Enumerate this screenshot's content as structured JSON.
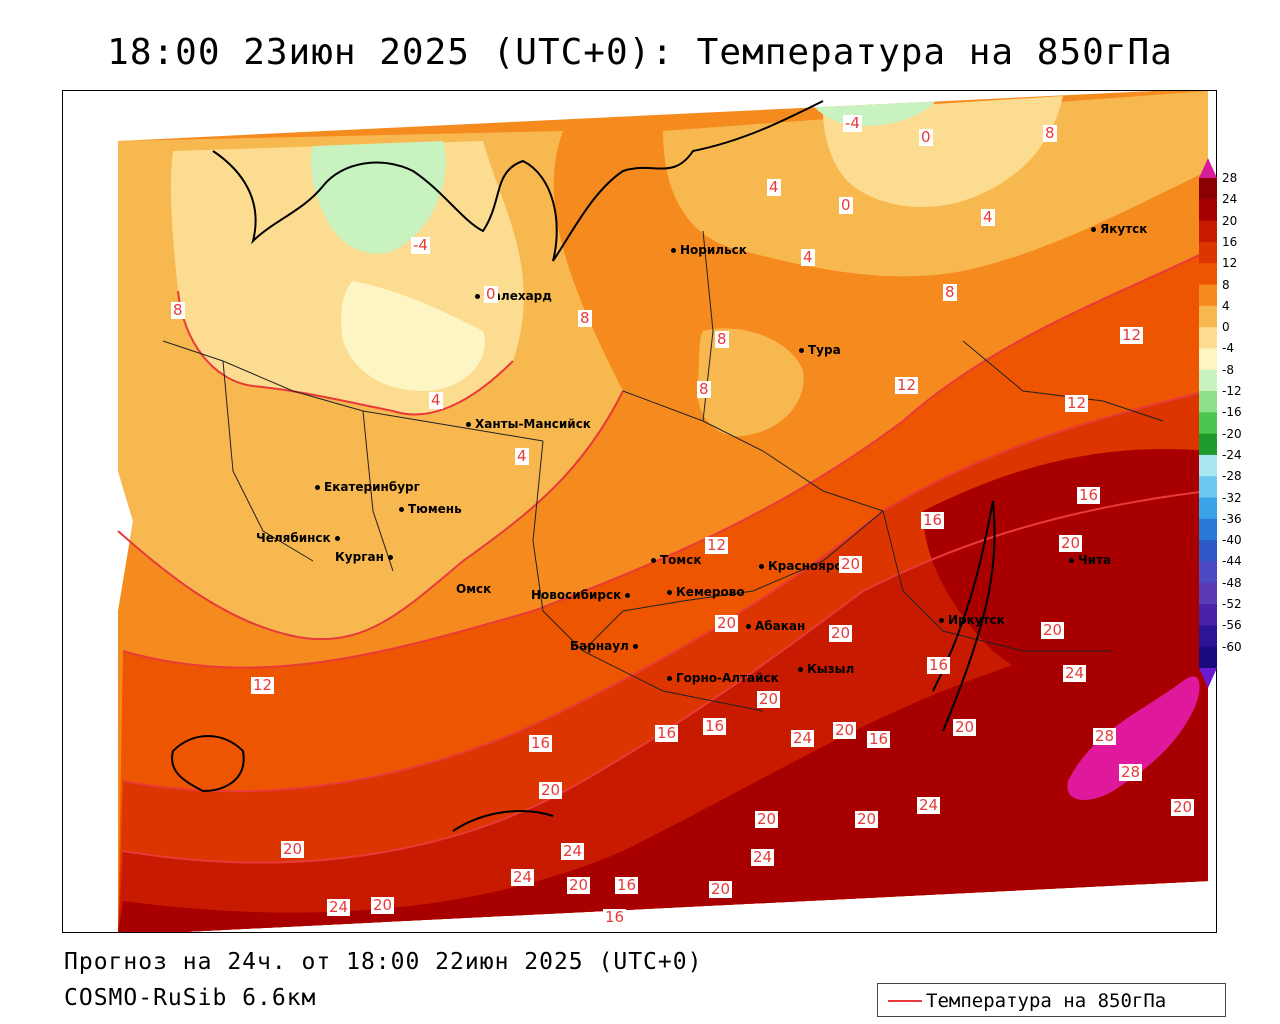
{
  "title": "18:00 23июн 2025 (UTC+0): Температура на 850гПа",
  "footer": {
    "forecast": "Прогноз на 24ч. от 18:00 22июн 2025 (UTC+0)",
    "model": "COSMO-RuSib 6.6км"
  },
  "legend": {
    "label": "Температура на 850гПа",
    "line_color": "#e83a3a"
  },
  "colorbar": {
    "labels": [
      "28",
      "24",
      "20",
      "16",
      "12",
      "8",
      "4",
      "0",
      "-4",
      "-8",
      "-12",
      "-16",
      "-20",
      "-24",
      "-28",
      "-32",
      "-36",
      "-40",
      "-44",
      "-48",
      "-52",
      "-56",
      "-60"
    ],
    "colors": [
      "#8b0000",
      "#a80000",
      "#c81a00",
      "#dc3500",
      "#ee5500",
      "#f58a1e",
      "#f8b850",
      "#fbdc90",
      "#fdf6c4",
      "#c8f2c0",
      "#8ee08a",
      "#4cc64e",
      "#1f9a2c",
      "#a8e6f0",
      "#6cc8ef",
      "#3aa2e6",
      "#2878d8",
      "#2e58c6",
      "#4d49c2",
      "#5b3ab8",
      "#4a22a8",
      "#2d1396",
      "#1a0a80"
    ],
    "top_arrow_color": "#d81b9a",
    "bottom_arrow_color": "#6c1ad2"
  },
  "cities": [
    {
      "name": "Норильск"
    },
    {
      "name": "Якутск"
    },
    {
      "name": "Салехард"
    },
    {
      "name": "Тура"
    },
    {
      "name": "Ханты-Мансийск"
    },
    {
      "name": "Екатеринбург"
    },
    {
      "name": "Тюмень"
    },
    {
      "name": "Челябинск"
    },
    {
      "name": "Курган"
    },
    {
      "name": "Омск"
    },
    {
      "name": "Томск"
    },
    {
      "name": "Новосибирск"
    },
    {
      "name": "Кемерово"
    },
    {
      "name": "Красноярск"
    },
    {
      "name": "Абакан"
    },
    {
      "name": "Барнаул"
    },
    {
      "name": "Горно-Алтайск"
    },
    {
      "name": "Кызыл"
    },
    {
      "name": "Иркутск"
    },
    {
      "name": "Чита"
    }
  ],
  "isotherm_labels": [
    "-4",
    "0",
    "8",
    "4",
    "-4",
    "0",
    "4",
    "8",
    "8",
    "0",
    "8",
    "8",
    "4",
    "12",
    "12",
    "8",
    "4",
    "4",
    "12",
    "16",
    "16",
    "20",
    "20",
    "20",
    "20",
    "20",
    "12",
    "12",
    "16",
    "16",
    "16",
    "20",
    "24",
    "20",
    "16",
    "20",
    "24",
    "28",
    "28",
    "16",
    "20",
    "20",
    "20",
    "24",
    "24",
    "24",
    "20",
    "20",
    "16",
    "16",
    "24",
    "20",
    "20",
    "24",
    "20"
  ]
}
